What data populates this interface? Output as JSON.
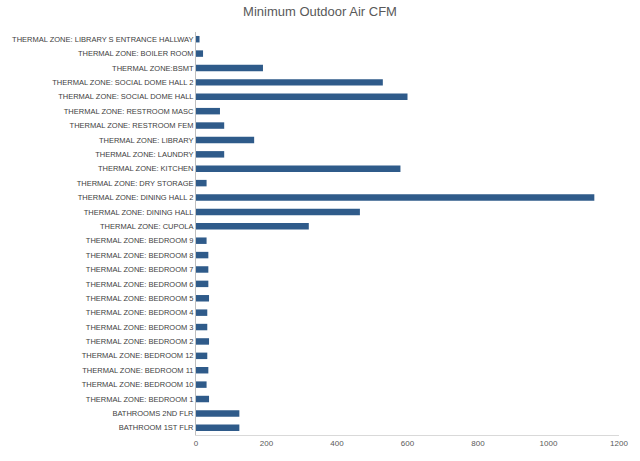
{
  "chart_data": {
    "type": "bar",
    "orientation": "horizontal",
    "title": "Minimum Outdoor Air CFM",
    "categories": [
      "THERMAL ZONE: LIBRARY S ENTRANCE HALLWAY",
      "THERMAL ZONE: BOILER ROOM",
      "THERMAL ZONE:BSMT",
      "THERMAL ZONE: SOCIAL DOME HALL 2",
      "THERMAL ZONE: SOCIAL DOME HALL",
      "THERMAL ZONE: RESTROOM MASC",
      "THERMAL ZONE: RESTROOM FEM",
      "THERMAL ZONE: LIBRARY",
      "THERMAL ZONE: LAUNDRY",
      "THERMAL ZONE: KITCHEN",
      "THERMAL ZONE: DRY STORAGE",
      "THERMAL ZONE: DINING HALL 2",
      "THERMAL ZONE: DINING HALL",
      "THERMAL ZONE: CUPOLA",
      "THERMAL ZONE: BEDROOM 9",
      "THERMAL ZONE: BEDROOM 8",
      "THERMAL ZONE: BEDROOM 7",
      "THERMAL ZONE: BEDROOM 6",
      "THERMAL ZONE: BEDROOM 5",
      "THERMAL ZONE: BEDROOM 4",
      "THERMAL ZONE: BEDROOM 3",
      "THERMAL ZONE: BEDROOM 2",
      "THERMAL ZONE: BEDROOM 12",
      "THERMAL ZONE: BEDROOM 11",
      "THERMAL ZONE: BEDROOM 10",
      "THERMAL ZONE: BEDROOM 1",
      "BATHROOMS 2ND FLR",
      "BATHROOM 1ST FLR"
    ],
    "values": [
      10,
      20,
      190,
      530,
      600,
      68,
      80,
      165,
      80,
      580,
      30,
      1130,
      465,
      320,
      30,
      35,
      35,
      35,
      37,
      32,
      32,
      37,
      32,
      35,
      30,
      37,
      123,
      123
    ],
    "color": "#2f5b8a",
    "xlim": [
      0,
      1200
    ],
    "xticks": [
      0,
      200,
      400,
      600,
      800,
      1000,
      1200
    ],
    "grid": false
  }
}
